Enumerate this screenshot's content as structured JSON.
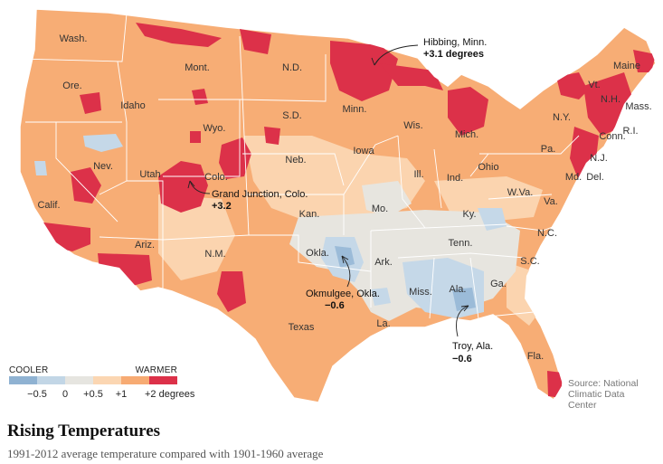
{
  "title": "Rising Temperatures",
  "subtitle": "1991-2012 average temperature compared with 1901-1960 average",
  "source": [
    "Source: National",
    "Climatic Data",
    "Center"
  ],
  "legend": {
    "cooler_label": "COOLER",
    "warmer_label": "WARMER",
    "bins": [
      {
        "color": "#8fb2d2"
      },
      {
        "color": "#c2d6e6"
      },
      {
        "color": "#e6e5e0"
      },
      {
        "color": "#fbd6b2"
      },
      {
        "color": "#f7ab73"
      },
      {
        "color": "#dc3149"
      }
    ],
    "ticks": [
      "−0.5",
      "0",
      "+0.5",
      "+1",
      "+2 degrees"
    ]
  },
  "states": [
    {
      "label": "Wash."
    },
    {
      "label": "Ore."
    },
    {
      "label": "Calif."
    },
    {
      "label": "Idaho"
    },
    {
      "label": "Nev."
    },
    {
      "label": "Utah"
    },
    {
      "label": "Ariz."
    },
    {
      "label": "Mont."
    },
    {
      "label": "Wyo."
    },
    {
      "label": "Colo."
    },
    {
      "label": "N.M."
    },
    {
      "label": "N.D."
    },
    {
      "label": "S.D."
    },
    {
      "label": "Neb."
    },
    {
      "label": "Kan."
    },
    {
      "label": "Okla."
    },
    {
      "label": "Texas"
    },
    {
      "label": "Minn."
    },
    {
      "label": "Iowa"
    },
    {
      "label": "Mo."
    },
    {
      "label": "Ark."
    },
    {
      "label": "La."
    },
    {
      "label": "Wis."
    },
    {
      "label": "Ill."
    },
    {
      "label": "Mich."
    },
    {
      "label": "Ind."
    },
    {
      "label": "Ohio"
    },
    {
      "label": "Ky."
    },
    {
      "label": "Tenn."
    },
    {
      "label": "Miss."
    },
    {
      "label": "Ala."
    },
    {
      "label": "Ga."
    },
    {
      "label": "Fla."
    },
    {
      "label": "S.C."
    },
    {
      "label": "N.C."
    },
    {
      "label": "Va."
    },
    {
      "label": "W.Va."
    },
    {
      "label": "Pa."
    },
    {
      "label": "N.Y."
    },
    {
      "label": "Vt."
    },
    {
      "label": "N.H."
    },
    {
      "label": "Maine"
    },
    {
      "label": "Mass."
    },
    {
      "label": "Conn."
    },
    {
      "label": "R.I."
    },
    {
      "label": "N.J."
    },
    {
      "label": "Md."
    },
    {
      "label": "Del."
    }
  ],
  "callouts": [
    {
      "place": "Hibbing, Minn.",
      "value": "+3.1 degrees"
    },
    {
      "place": "Grand Junction, Colo.",
      "value": "+3.2"
    },
    {
      "place": "Okmulgee, Okla.",
      "value": "−0.6"
    },
    {
      "place": "Troy, Ala.",
      "value": "−0.6"
    }
  ]
}
